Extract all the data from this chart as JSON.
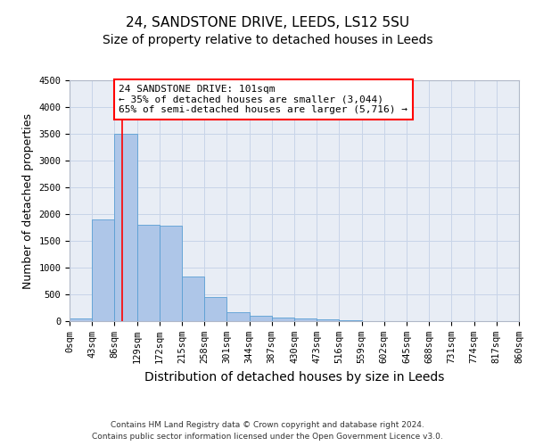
{
  "title": "24, SANDSTONE DRIVE, LEEDS, LS12 5SU",
  "subtitle": "Size of property relative to detached houses in Leeds",
  "xlabel": "Distribution of detached houses by size in Leeds",
  "ylabel": "Number of detached properties",
  "bin_edges": [
    0,
    43,
    86,
    129,
    172,
    215,
    258,
    301,
    344,
    387,
    430,
    473,
    516,
    559,
    602,
    645,
    688,
    731,
    774,
    817,
    860
  ],
  "bin_heights": [
    50,
    1900,
    3500,
    1800,
    1780,
    840,
    450,
    160,
    100,
    60,
    45,
    35,
    15,
    8,
    5,
    4,
    3,
    2,
    2,
    1
  ],
  "bar_color": "#aec6e8",
  "bar_edge_color": "#5a9fd4",
  "red_line_x": 101,
  "ylim": [
    0,
    4500
  ],
  "xlim": [
    0,
    860
  ],
  "annotation_line1": "24 SANDSTONE DRIVE: 101sqm",
  "annotation_line2": "← 35% of detached houses are smaller (3,044)",
  "annotation_line3": "65% of semi-detached houses are larger (5,716) →",
  "footer_line1": "Contains HM Land Registry data © Crown copyright and database right 2024.",
  "footer_line2": "Contains public sector information licensed under the Open Government Licence v3.0.",
  "bg_color": "#ffffff",
  "plot_bg_color": "#e8edf5",
  "grid_color": "#c8d4e8",
  "title_fontsize": 11,
  "subtitle_fontsize": 10,
  "xlabel_fontsize": 10,
  "ylabel_fontsize": 9,
  "tick_label_size": 7.5,
  "annotation_fontsize": 8,
  "footer_fontsize": 6.5
}
